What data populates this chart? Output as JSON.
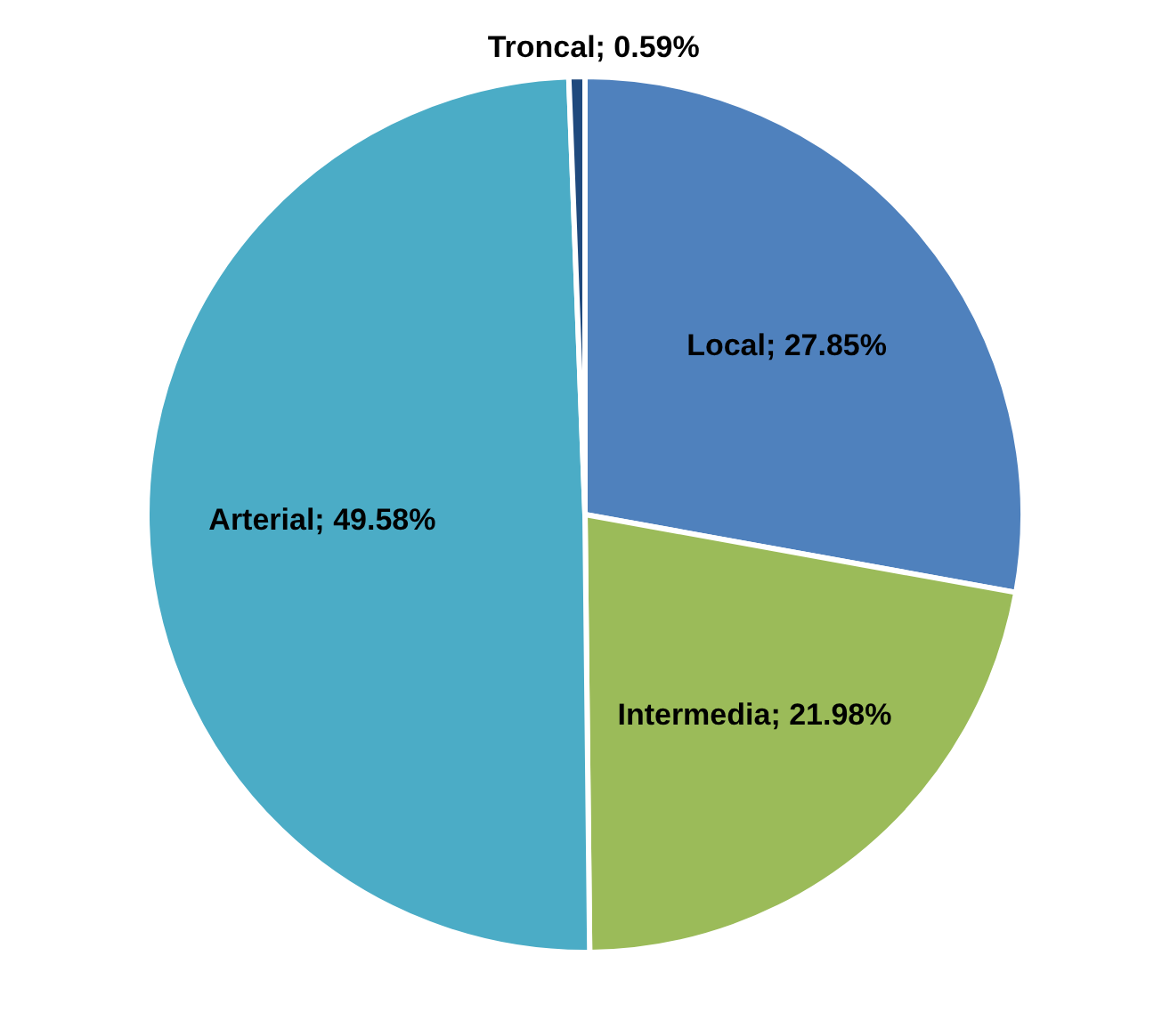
{
  "chart_data": {
    "type": "pie",
    "categories": [
      "Local",
      "Intermedia",
      "Arterial",
      "Troncal"
    ],
    "values": [
      27.85,
      21.98,
      49.58,
      0.59
    ],
    "colors": [
      "#4f81bd",
      "#9bbb59",
      "#4bacc6",
      "#1f497d"
    ],
    "value_labels": [
      "27.85%",
      "21.98%",
      "49.58%",
      "0.59%"
    ]
  }
}
